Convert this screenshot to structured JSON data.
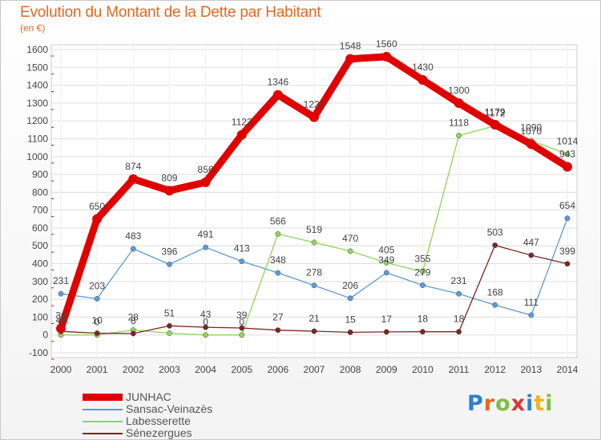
{
  "title": "Evolution du Montant de la Dette par Habitant",
  "subtitle": "(en €)",
  "logo": {
    "letters": [
      "P",
      "r",
      "o",
      "x",
      "i",
      "t",
      "i"
    ],
    "colors": [
      "#2f7fd0",
      "#e8671e",
      "#7cc043",
      "#e0382c",
      "#2f7fd0",
      "#f0b31b",
      "#7cc043"
    ]
  },
  "chart_data": {
    "type": "line",
    "x": [
      "2000",
      "2001",
      "2002",
      "2003",
      "2004",
      "2005",
      "2006",
      "2007",
      "2008",
      "2009",
      "2010",
      "2011",
      "2012",
      "2013",
      "2014"
    ],
    "ylim": [
      -100,
      1600
    ],
    "yticks": [
      -100,
      0,
      100,
      200,
      300,
      400,
      500,
      600,
      700,
      800,
      900,
      1000,
      1100,
      1200,
      1300,
      1400,
      1500,
      1600
    ],
    "grid": true,
    "legend_position": "bottom-left",
    "series": [
      {
        "name": "JUNHAC",
        "color": "#e00000",
        "values": [
          36,
          650,
          874,
          809,
          856,
          1122,
          1346,
          1221,
          1548,
          1560,
          1430,
          1300,
          1179,
          1070,
          943
        ],
        "labels": [
          "36",
          "650",
          "874",
          "809",
          "856",
          "1122",
          "1346",
          "1221",
          "1548",
          "1560",
          "1430",
          "1300",
          "1179",
          "1070",
          "943"
        ]
      },
      {
        "name": "Sansac-Veinazès",
        "color": "#5b9bd5",
        "values": [
          231,
          203,
          483,
          396,
          491,
          413,
          348,
          278,
          206,
          349,
          279,
          231,
          168,
          111,
          654
        ],
        "labels": [
          "231",
          "203",
          "483",
          "396",
          "491",
          "413",
          "348",
          "278",
          "206",
          "349",
          "279",
          "231",
          "168",
          "111",
          "654"
        ]
      },
      {
        "name": "Labesserette",
        "color": "#8fd45a",
        "values": [
          0,
          0,
          28,
          10,
          0,
          0,
          566,
          519,
          470,
          405,
          355,
          1118,
          1172,
          1090,
          1014
        ],
        "labels": [
          "0",
          "0",
          "28",
          "",
          "0",
          "0",
          "566",
          "519",
          "470",
          "405",
          "355",
          "1118",
          "1172",
          "1090",
          "1014"
        ]
      },
      {
        "name": "Sénezergues",
        "color": "#7a2525",
        "values": [
          20,
          10,
          8,
          51,
          43,
          39,
          27,
          21,
          15,
          17,
          18,
          18,
          503,
          447,
          399
        ],
        "labels": [
          "20",
          "10",
          "8",
          "51",
          "43",
          "39",
          "27",
          "21",
          "15",
          "17",
          "18",
          "18",
          "503",
          "447",
          "399"
        ]
      }
    ]
  }
}
